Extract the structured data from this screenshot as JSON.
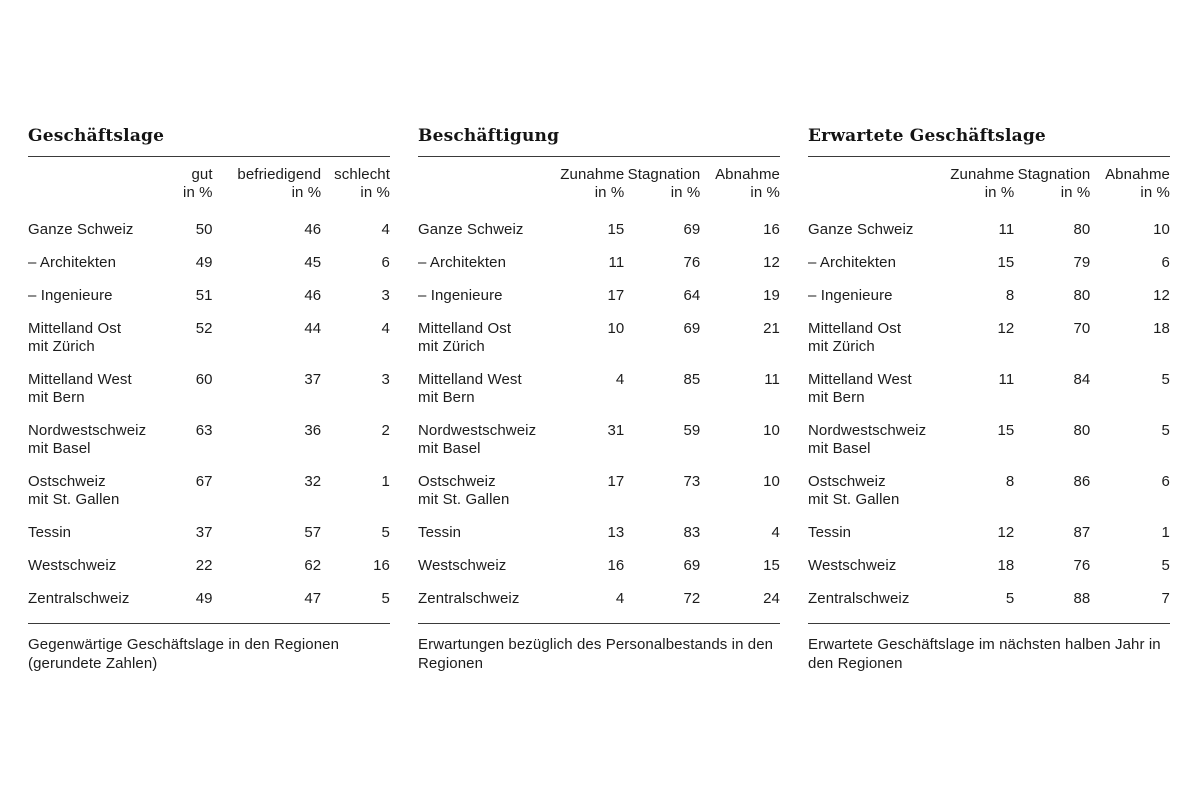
{
  "page": {
    "background": "#ffffff",
    "text_color": "#1c1c1c",
    "rule_color": "#3a3a3a"
  },
  "tables": [
    {
      "title": "Geschäftslage",
      "columns": [
        {
          "line1": "gut",
          "line2": "in %"
        },
        {
          "line1": "befriedigend",
          "line2": "in %"
        },
        {
          "line1": "schlecht",
          "line2": "in %"
        }
      ],
      "rows": [
        {
          "label": "Ganze Schweiz",
          "sub": "",
          "values": [
            50,
            46,
            4
          ]
        },
        {
          "label": "– Architekten",
          "sub": "",
          "values": [
            49,
            45,
            6
          ]
        },
        {
          "label": "– Ingenieure",
          "sub": "",
          "values": [
            51,
            46,
            3
          ]
        },
        {
          "label": "Mittelland Ost",
          "sub": "mit Zürich",
          "values": [
            52,
            44,
            4
          ]
        },
        {
          "label": "Mittelland West",
          "sub": "mit Bern",
          "values": [
            60,
            37,
            3
          ]
        },
        {
          "label": "Nordwestschweiz",
          "sub": "mit Basel",
          "values": [
            63,
            36,
            2
          ]
        },
        {
          "label": "Ostschweiz",
          "sub": "mit St. Gallen",
          "values": [
            67,
            32,
            1
          ]
        },
        {
          "label": "Tessin",
          "sub": "",
          "values": [
            37,
            57,
            5
          ]
        },
        {
          "label": "Westschweiz",
          "sub": "",
          "values": [
            22,
            62,
            16
          ]
        },
        {
          "label": "Zentralschweiz",
          "sub": "",
          "values": [
            49,
            47,
            5
          ]
        }
      ],
      "caption": "Gegenwärtige Geschäftslage in den Regionen (gerundete Zahlen)"
    },
    {
      "title": "Beschäftigung",
      "columns": [
        {
          "line1": "Zunahme",
          "line2": "in %"
        },
        {
          "line1": "Stagnation",
          "line2": "in %"
        },
        {
          "line1": "Abnahme",
          "line2": "in %"
        }
      ],
      "rows": [
        {
          "label": "Ganze Schweiz",
          "sub": "",
          "values": [
            15,
            69,
            16
          ]
        },
        {
          "label": "– Architekten",
          "sub": "",
          "values": [
            11,
            76,
            12
          ]
        },
        {
          "label": "– Ingenieure",
          "sub": "",
          "values": [
            17,
            64,
            19
          ]
        },
        {
          "label": "Mittelland Ost",
          "sub": "mit Zürich",
          "values": [
            10,
            69,
            21
          ]
        },
        {
          "label": "Mittelland West",
          "sub": "mit Bern",
          "values": [
            4,
            85,
            11
          ]
        },
        {
          "label": "Nordwestschweiz",
          "sub": "mit Basel",
          "values": [
            31,
            59,
            10
          ]
        },
        {
          "label": "Ostschweiz",
          "sub": "mit St. Gallen",
          "values": [
            17,
            73,
            10
          ]
        },
        {
          "label": "Tessin",
          "sub": "",
          "values": [
            13,
            83,
            4
          ]
        },
        {
          "label": "Westschweiz",
          "sub": "",
          "values": [
            16,
            69,
            15
          ]
        },
        {
          "label": "Zentralschweiz",
          "sub": "",
          "values": [
            4,
            72,
            24
          ]
        }
      ],
      "caption": "Erwartungen bezüglich des Personalbestands in den Regionen"
    },
    {
      "title": "Erwartete Geschäftslage",
      "columns": [
        {
          "line1": "Zunahme",
          "line2": "in %"
        },
        {
          "line1": "Stagnation",
          "line2": "in %"
        },
        {
          "line1": "Abnahme",
          "line2": "in %"
        }
      ],
      "rows": [
        {
          "label": "Ganze Schweiz",
          "sub": "",
          "values": [
            11,
            80,
            10
          ]
        },
        {
          "label": "– Architekten",
          "sub": "",
          "values": [
            15,
            79,
            6
          ]
        },
        {
          "label": "– Ingenieure",
          "sub": "",
          "values": [
            8,
            80,
            12
          ]
        },
        {
          "label": "Mittelland Ost",
          "sub": "mit Zürich",
          "values": [
            12,
            70,
            18
          ]
        },
        {
          "label": "Mittelland West",
          "sub": "mit Bern",
          "values": [
            11,
            84,
            5
          ]
        },
        {
          "label": "Nordwestschweiz",
          "sub": "mit Basel",
          "values": [
            15,
            80,
            5
          ]
        },
        {
          "label": "Ostschweiz",
          "sub": "mit St. Gallen",
          "values": [
            8,
            86,
            6
          ]
        },
        {
          "label": "Tessin",
          "sub": "",
          "values": [
            12,
            87,
            1
          ]
        },
        {
          "label": "Westschweiz",
          "sub": "",
          "values": [
            18,
            76,
            5
          ]
        },
        {
          "label": "Zentralschweiz",
          "sub": "",
          "values": [
            5,
            88,
            7
          ]
        }
      ],
      "caption": "Erwartete Geschäftslage im nächsten halben Jahr in den Regionen"
    }
  ]
}
